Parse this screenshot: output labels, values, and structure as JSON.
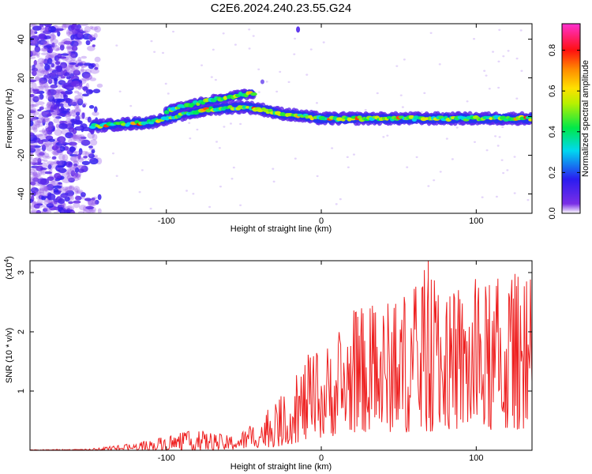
{
  "title": "C2E6.2024.240.23.55.G24",
  "chart_data": [
    {
      "type": "heatmap",
      "xlabel": "Height of straight line (km)",
      "ylabel": "Frequency (Hz)",
      "xlim": [
        -188,
        136
      ],
      "ylim": [
        -50,
        48
      ],
      "xticks": [
        -100,
        0,
        100
      ],
      "yticks": [
        -40,
        -20,
        0,
        20,
        40
      ],
      "colorbar": {
        "label": "Normalized spectral amplitude",
        "range": [
          0,
          0.93
        ],
        "ticks": [
          0.0,
          0.2,
          0.4,
          0.6,
          0.8
        ],
        "colormap": "rainbow (purple-blue-cyan-green-yellow-orange-red-magenta)"
      },
      "features": [
        {
          "name": "main trace",
          "x": [
            -148,
            -130,
            -110,
            -90,
            -70,
            -50,
            -40,
            -30,
            -20,
            -10,
            0,
            40,
            80,
            136
          ],
          "y": [
            -5,
            -4,
            -3,
            1,
            4,
            5,
            4,
            2,
            1,
            0,
            -1,
            -1,
            -1,
            -1
          ]
        },
        {
          "name": "upper branch",
          "x": [
            -100,
            -80,
            -60,
            -45
          ],
          "y": [
            3,
            7,
            10,
            12
          ]
        },
        {
          "name": "noise region",
          "x_range": [
            -188,
            -140
          ],
          "y_range": [
            -50,
            48
          ]
        }
      ]
    },
    {
      "type": "line",
      "xlabel": "Height of straight line (km)",
      "ylabel": "SNR (10 * v/v)",
      "y_multiplier": "(x10^4)",
      "xlim": [
        -188,
        136
      ],
      "ylim": [
        0,
        3.2
      ],
      "xticks": [
        -100,
        0,
        100
      ],
      "yticks": [
        1,
        2,
        3
      ],
      "color": "#ee2222",
      "envelope": {
        "x": [
          -188,
          -150,
          -120,
          -100,
          -80,
          -60,
          -50,
          -40,
          -30,
          -20,
          -10,
          0,
          10,
          20,
          40,
          60,
          70,
          80,
          100,
          110,
          120,
          136
        ],
        "max": [
          0.01,
          0.02,
          0.12,
          0.25,
          0.35,
          0.25,
          0.35,
          0.55,
          0.8,
          1.1,
          1.6,
          1.7,
          2.0,
          2.4,
          2.5,
          2.8,
          3.2,
          2.6,
          2.9,
          2.8,
          3.1,
          2.9
        ],
        "min": [
          0.0,
          0.0,
          0.0,
          0.0,
          0.0,
          0.0,
          0.02,
          0.05,
          0.05,
          0.1,
          0.15,
          0.2,
          0.25,
          0.3,
          0.3,
          0.3,
          0.3,
          0.35,
          0.3,
          0.3,
          0.3,
          0.4
        ]
      },
      "peak": {
        "x": 69,
        "y": 3.2
      }
    }
  ]
}
